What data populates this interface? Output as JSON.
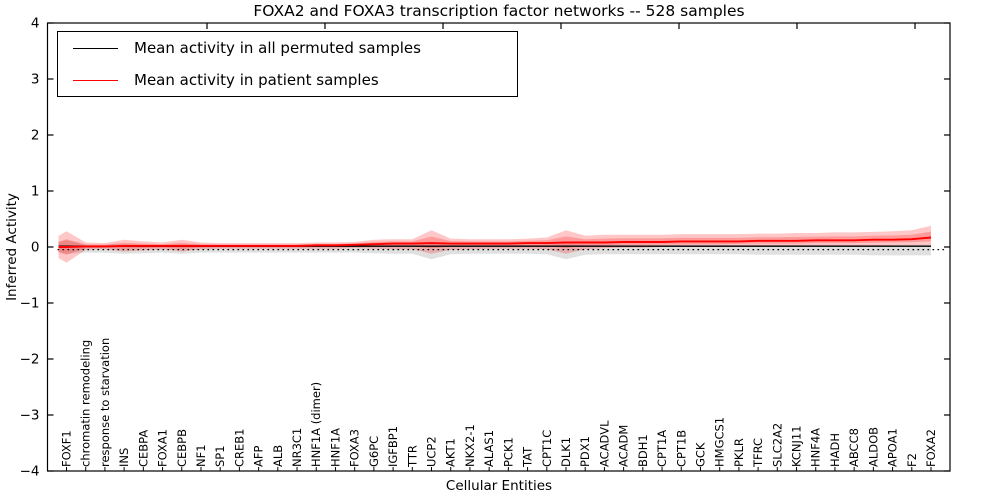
{
  "chart_data": {
    "type": "line",
    "title": "FOXA2 and FOXA3 transcription factor networks -- 528 samples",
    "xlabel": "Cellular Entities",
    "ylabel": "Inferred Activity",
    "ylim": [
      -4,
      4
    ],
    "y_ticks": [
      4,
      3,
      2,
      1,
      0,
      -1,
      -2,
      -3,
      -4
    ],
    "y_tick_labels": [
      "4",
      "3",
      "2",
      "1",
      "0",
      "−1",
      "−2",
      "−3",
      "−4"
    ],
    "grid": false,
    "legend_position": "upper left",
    "legend": {
      "entries": [
        {
          "label": "Mean activity in all permuted samples",
          "color": "#000000"
        },
        {
          "label": "Mean activity in patient samples",
          "color": "#ff0000"
        }
      ]
    },
    "zero_line": {
      "y": 0,
      "style": "dotted",
      "color": "#000000"
    },
    "categories": [
      "FOXF1",
      "chromatin remodeling",
      "response to starvation",
      "INS",
      "CEBPA",
      "FOXA1",
      "CEBPB",
      "NF1",
      "SP1",
      "CREB1",
      "AFP",
      "ALB",
      "NR3C1",
      "HNF1A (dimer)",
      "HNF1A",
      "FOXA3",
      "G6PC",
      "IGFBP1",
      "TTR",
      "UCP2",
      "AKT1",
      "NKX2-1",
      "ALAS1",
      "PCK1",
      "TAT",
      "CPT1C",
      "DLK1",
      "PDX1",
      "ACADVL",
      "ACADM",
      "BDH1",
      "CPT1A",
      "CPT1B",
      "GCK",
      "HMGCS1",
      "PKLR",
      "TFRC",
      "SLC2A2",
      "KCNJ11",
      "HNF4A",
      "HADH",
      "ABCC8",
      "ALDOB",
      "APOA1",
      "F2",
      "FOXA2"
    ],
    "series": [
      {
        "name": "Mean activity in all permuted samples",
        "color": "#000000",
        "band_color": "rgba(0,0,0,0.12)",
        "values": [
          0,
          0,
          0,
          0,
          0,
          0,
          0,
          0,
          0,
          0,
          0,
          0,
          0,
          0,
          0,
          0,
          0,
          0,
          0,
          0,
          0,
          0,
          0,
          0,
          0,
          0,
          0,
          0,
          0,
          0,
          0,
          0,
          0,
          0,
          0,
          0,
          0,
          0,
          0,
          0,
          0,
          0,
          0,
          0,
          0,
          0
        ],
        "band_upper": [
          0.12,
          0.04,
          0.04,
          0.05,
          0.04,
          0.04,
          0.05,
          0.04,
          0.04,
          0.04,
          0.04,
          0.04,
          0.04,
          0.04,
          0.04,
          0.04,
          0.04,
          0.04,
          0.04,
          0.05,
          0.04,
          0.04,
          0.04,
          0.04,
          0.04,
          0.04,
          0.05,
          0.04,
          0.04,
          0.04,
          0.04,
          0.04,
          0.04,
          0.04,
          0.04,
          0.04,
          0.04,
          0.04,
          0.04,
          0.04,
          0.04,
          0.04,
          0.04,
          0.04,
          0.04,
          0.04
        ],
        "band_lower": [
          -0.12,
          -0.1,
          -0.1,
          -0.12,
          -0.11,
          -0.1,
          -0.12,
          -0.1,
          -0.1,
          -0.1,
          -0.1,
          -0.1,
          -0.1,
          -0.1,
          -0.1,
          -0.1,
          -0.11,
          -0.12,
          -0.12,
          -0.22,
          -0.13,
          -0.12,
          -0.12,
          -0.12,
          -0.12,
          -0.13,
          -0.22,
          -0.14,
          -0.13,
          -0.13,
          -0.13,
          -0.13,
          -0.13,
          -0.13,
          -0.13,
          -0.13,
          -0.14,
          -0.14,
          -0.14,
          -0.14,
          -0.14,
          -0.14,
          -0.15,
          -0.15,
          -0.15,
          -0.15
        ]
      },
      {
        "name": "Mean activity in patient samples",
        "color": "#ff0000",
        "band_color": "rgba(255,0,0,0.22)",
        "values": [
          0.0,
          0.01,
          0.01,
          0.02,
          0.02,
          0.02,
          0.02,
          0.02,
          0.02,
          0.02,
          0.02,
          0.02,
          0.02,
          0.03,
          0.03,
          0.04,
          0.05,
          0.06,
          0.06,
          0.07,
          0.06,
          0.06,
          0.06,
          0.06,
          0.07,
          0.07,
          0.08,
          0.08,
          0.08,
          0.09,
          0.09,
          0.09,
          0.1,
          0.1,
          0.1,
          0.1,
          0.11,
          0.11,
          0.11,
          0.12,
          0.12,
          0.12,
          0.13,
          0.13,
          0.14,
          0.17
        ],
        "band_upper": [
          0.28,
          0.08,
          0.07,
          0.13,
          0.1,
          0.08,
          0.13,
          0.08,
          0.07,
          0.07,
          0.07,
          0.07,
          0.07,
          0.08,
          0.08,
          0.09,
          0.13,
          0.14,
          0.14,
          0.3,
          0.15,
          0.14,
          0.14,
          0.14,
          0.15,
          0.17,
          0.3,
          0.2,
          0.22,
          0.22,
          0.22,
          0.22,
          0.23,
          0.23,
          0.23,
          0.23,
          0.24,
          0.24,
          0.25,
          0.25,
          0.26,
          0.26,
          0.27,
          0.28,
          0.3,
          0.38
        ],
        "band_lower": [
          -0.28,
          -0.05,
          -0.04,
          -0.08,
          -0.06,
          -0.04,
          -0.08,
          -0.04,
          -0.03,
          -0.03,
          -0.03,
          -0.03,
          -0.03,
          -0.03,
          -0.03,
          -0.02,
          -0.03,
          -0.04,
          -0.04,
          -0.12,
          -0.05,
          -0.04,
          -0.03,
          -0.03,
          -0.03,
          -0.04,
          -0.12,
          -0.04,
          -0.02,
          -0.01,
          -0.01,
          0.0,
          0.0,
          0.0,
          0.0,
          0.01,
          0.01,
          0.01,
          0.01,
          0.02,
          0.02,
          0.02,
          0.02,
          0.03,
          0.03,
          0.03
        ]
      }
    ]
  }
}
